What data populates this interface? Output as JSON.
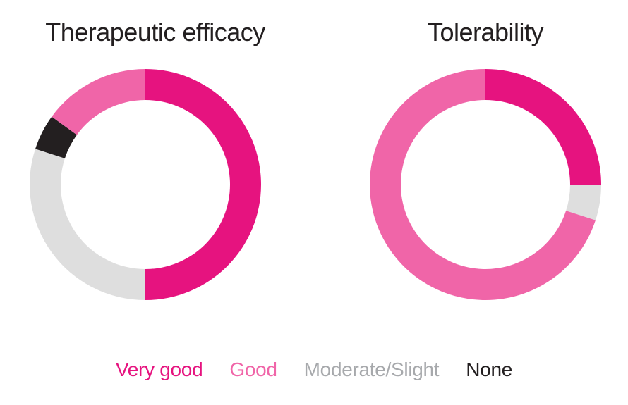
{
  "background_color": "#FFFFFF",
  "title_color": "#231F20",
  "chart_data": {
    "type": "donut",
    "unit": "percent",
    "start_angle_deg": 0,
    "direction": "clockwise",
    "legend_position": "bottom",
    "charts": [
      {
        "title": "Therapeutic efficacy",
        "segments": [
          {
            "label": "Very good",
            "value": 50
          },
          {
            "label": "Moderate/Slight",
            "value": 30
          },
          {
            "label": "None",
            "value": 5
          },
          {
            "label": "Good",
            "value": 15
          }
        ]
      },
      {
        "title": "Tolerability",
        "segments": [
          {
            "label": "Very good",
            "value": 25
          },
          {
            "label": "Moderate/Slight",
            "value": 5
          },
          {
            "label": "Good",
            "value": 70
          }
        ]
      }
    ],
    "legend": [
      {
        "label": "Very good",
        "color": "#E6137F",
        "text_color": "#E6137F"
      },
      {
        "label": "Good",
        "color": "#F065A8",
        "text_color": "#F065A8"
      },
      {
        "label": "Moderate/Slight",
        "color": "#DEDEDE",
        "text_color": "#A7A9AC"
      },
      {
        "label": "None",
        "color": "#231F20",
        "text_color": "#231F20"
      }
    ]
  }
}
